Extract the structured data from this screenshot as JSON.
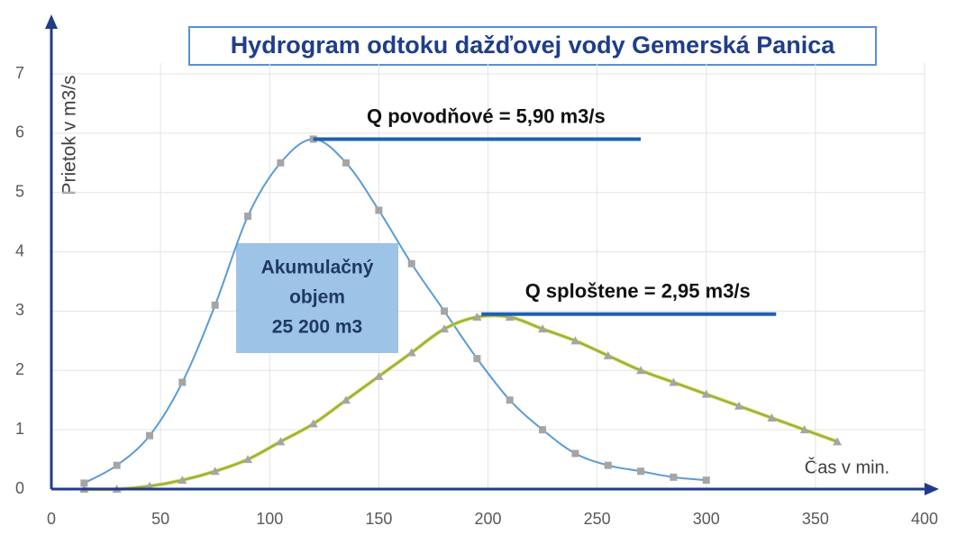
{
  "chart_data": {
    "type": "line",
    "title": "Hydrogram odtoku dažďovej vody Gemerská Panica",
    "ylabel": "Prietok v m3/s",
    "xlabel": "Čas v min.",
    "xlim": [
      0,
      400
    ],
    "xticks": [
      0,
      50,
      100,
      150,
      200,
      250,
      300,
      350,
      400
    ],
    "ylim": [
      0,
      7
    ],
    "yticks": [
      0,
      1,
      2,
      3,
      4,
      5,
      6,
      7
    ],
    "grid": true,
    "series": [
      {
        "color": "#5b9bd5",
        "marker_color": "#a5a5a5",
        "x": [
          15,
          30,
          45,
          60,
          75,
          90,
          105,
          120,
          135,
          150,
          165,
          180,
          195,
          210,
          225,
          240,
          255,
          270,
          285,
          300
        ],
        "values": [
          0.1,
          0.4,
          0.9,
          1.8,
          3.1,
          4.6,
          5.5,
          5.9,
          5.5,
          4.7,
          3.8,
          3.0,
          2.2,
          1.5,
          1.0,
          0.6,
          0.4,
          0.3,
          0.2,
          0.15
        ]
      },
      {
        "color": "#8cb43c",
        "marker_color": "#a5a5a5",
        "x": [
          15,
          30,
          45,
          60,
          75,
          90,
          105,
          120,
          135,
          150,
          165,
          180,
          195,
          210,
          225,
          240,
          255,
          270,
          285,
          300,
          315,
          330,
          345,
          360
        ],
        "values": [
          0,
          0,
          0.05,
          0.15,
          0.3,
          0.5,
          0.8,
          1.1,
          1.5,
          1.9,
          2.3,
          2.7,
          2.9,
          2.9,
          2.7,
          2.5,
          2.25,
          2.0,
          1.8,
          1.6,
          1.4,
          1.2,
          1.0,
          0.8
        ]
      }
    ],
    "annotations": [
      {
        "text": "Q povodňové = 5,90 m3/s",
        "y": 5.9,
        "x": [
          120,
          270
        ]
      },
      {
        "text": "Q sploštene = 2,95 m3/s",
        "y": 2.95,
        "x": [
          197,
          332
        ]
      }
    ],
    "box_text": [
      "Akumulačný",
      "objem",
      "25 200 m3"
    ]
  }
}
